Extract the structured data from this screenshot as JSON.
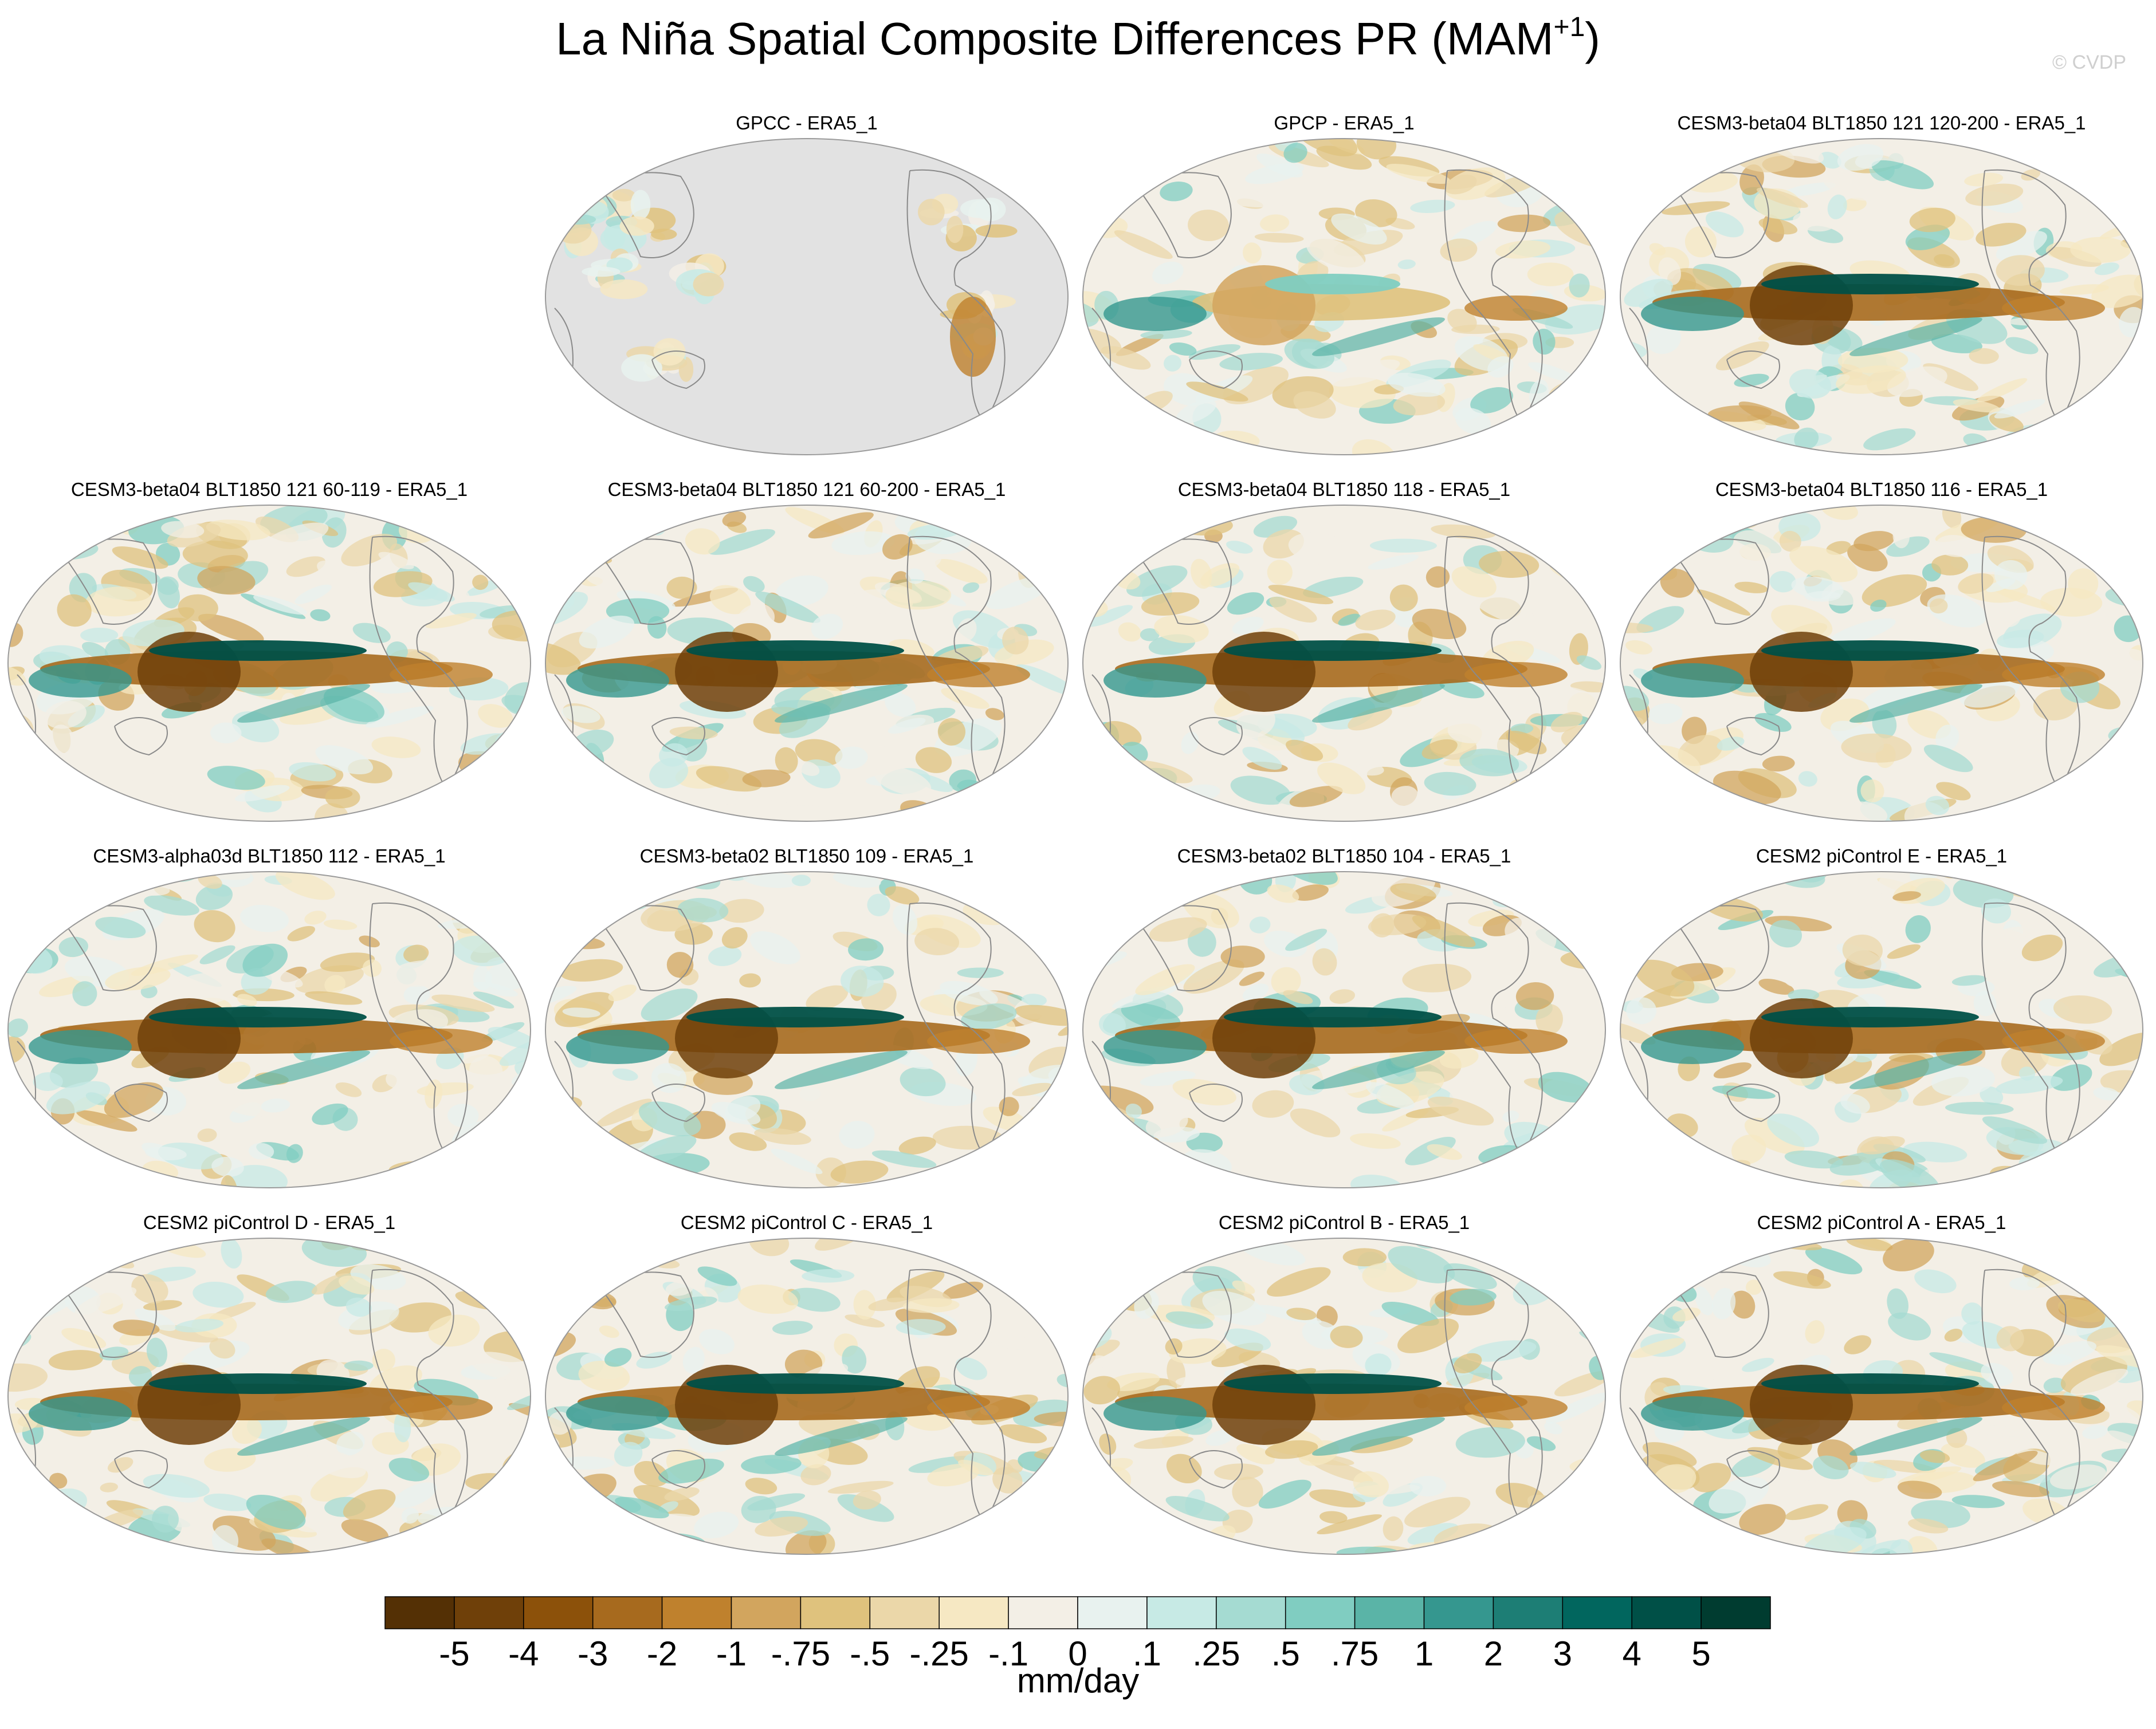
{
  "figure": {
    "title": "La Niña Spatial Composite Differences PR (MAM",
    "title_sup": "+1",
    "title_close": ")",
    "watermark": "© CVDP"
  },
  "chart_data": {
    "type": "heatmap",
    "title": "La Niña Spatial Composite Differences PR (MAM+1)",
    "projection": "Robinson, Pacific-centered",
    "layout": {
      "rows": 4,
      "cols": 4,
      "first_panel_empty": true
    },
    "panels": [
      {
        "title": "GPCC - ERA5_1",
        "land_only": true
      },
      {
        "title": "GPCP - ERA5_1",
        "land_only": false
      },
      {
        "title": "CESM3-beta04 BLT1850 121 120-200 - ERA5_1",
        "land_only": false
      },
      {
        "title": "CESM3-beta04 BLT1850 121 60-119 - ERA5_1",
        "land_only": false
      },
      {
        "title": "CESM3-beta04 BLT1850 121 60-200 - ERA5_1",
        "land_only": false
      },
      {
        "title": "CESM3-beta04 BLT1850 118 - ERA5_1",
        "land_only": false
      },
      {
        "title": "CESM3-beta04 BLT1850 116 - ERA5_1",
        "land_only": false
      },
      {
        "title": "CESM3-alpha03d BLT1850 112 - ERA5_1",
        "land_only": false
      },
      {
        "title": "CESM3-beta02 BLT1850 109 - ERA5_1",
        "land_only": false
      },
      {
        "title": "CESM3-beta02 BLT1850 104 - ERA5_1",
        "land_only": false
      },
      {
        "title": "CESM2 piControl E - ERA5_1",
        "land_only": false
      },
      {
        "title": "CESM2 piControl D - ERA5_1",
        "land_only": false
      },
      {
        "title": "CESM2 piControl C - ERA5_1",
        "land_only": false
      },
      {
        "title": "CESM2 piControl B - ERA5_1",
        "land_only": false
      },
      {
        "title": "CESM2 piControl A - ERA5_1",
        "land_only": false
      }
    ],
    "colorbar": {
      "units": "mm/day",
      "levels": [
        "-5",
        "-4",
        "-3",
        "-2",
        "-1",
        "-.75",
        "-.5",
        "-.25",
        "-.1",
        "0",
        ".1",
        ".25",
        ".5",
        ".75",
        "1",
        "2",
        "3",
        "4",
        "5"
      ],
      "colors": [
        "#543005",
        "#6f4009",
        "#8c510a",
        "#a76a1e",
        "#bf812d",
        "#d2a55e",
        "#dfc27d",
        "#ebd7a9",
        "#f6e8c3",
        "#f3efe6",
        "#e8f2ef",
        "#c7eae5",
        "#a5dbd2",
        "#80cdc1",
        "#5ab4a7",
        "#35978f",
        "#1d7e75",
        "#01665e",
        "#005047",
        "#003c30"
      ]
    }
  }
}
